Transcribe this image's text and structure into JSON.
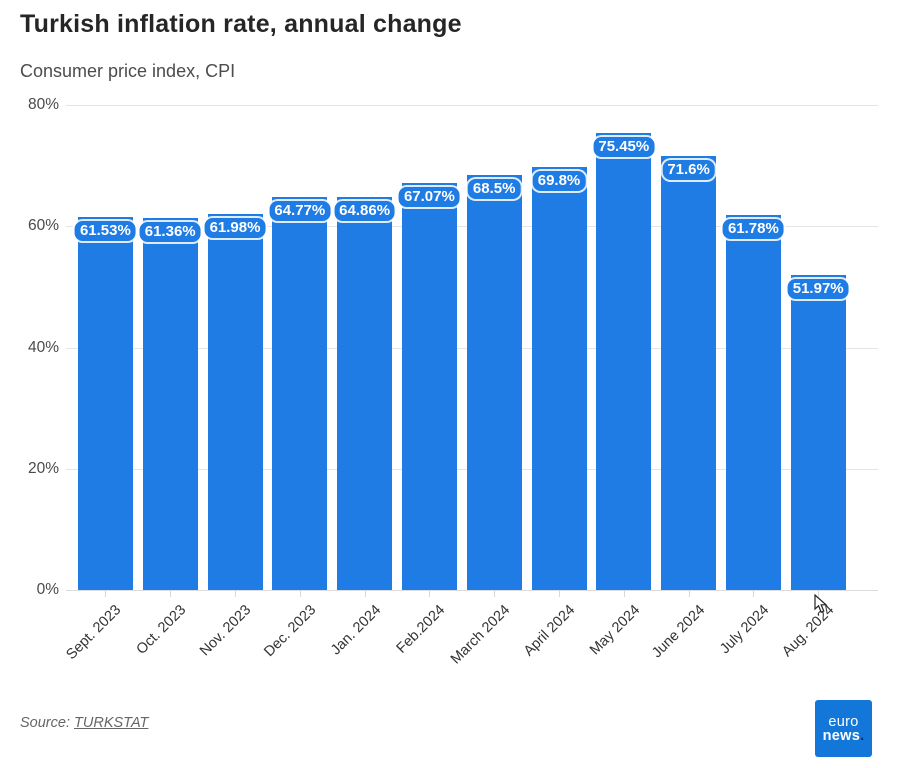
{
  "header": {
    "title": "Turkish inflation rate, annual change",
    "subtitle": "Consumer price index, CPI"
  },
  "chart_data": {
    "type": "bar",
    "title": "Turkish inflation rate, annual change",
    "subtitle": "Consumer price index, CPI",
    "categories": [
      "Sept. 2023",
      "Oct. 2023",
      "Nov. 2023",
      "Dec. 2023",
      "Jan. 2024",
      "Feb.2024",
      "March 2024",
      "April 2024",
      "May 2024",
      "June 2024",
      "July 2024",
      "Aug. 2024"
    ],
    "values": [
      61.53,
      61.36,
      61.98,
      64.77,
      64.86,
      67.07,
      68.5,
      69.8,
      75.45,
      71.6,
      61.78,
      51.97
    ],
    "value_labels": [
      "61.53%",
      "61.36%",
      "61.98%",
      "64.77%",
      "64.86%",
      "67.07%",
      "68.5%",
      "69.8%",
      "75.45%",
      "71.6%",
      "61.78%",
      "51.97%"
    ],
    "xlabel": "",
    "ylabel": "",
    "ylim": [
      0,
      80
    ],
    "yticks": [
      {
        "value": 0,
        "label": "0%"
      },
      {
        "value": 20,
        "label": "20%"
      },
      {
        "value": 40,
        "label": "40%"
      },
      {
        "value": 60,
        "label": "60%"
      },
      {
        "value": 80,
        "label": "80%"
      }
    ],
    "grid": true,
    "legend": false,
    "bar_color": "#1e7ce4"
  },
  "footer": {
    "source_prefix": "Source:",
    "source_link": "TURKSTAT"
  },
  "logo": {
    "line1": "euro",
    "line2": "news",
    "dot": "."
  },
  "colors": {
    "bar": "#1e7ce4",
    "grid": "#e4e4e4",
    "logo_bg": "#1377d9",
    "logo_dot": "#0a2f6e",
    "title_text": "#262626",
    "axis_text": "#4a4a4a"
  }
}
